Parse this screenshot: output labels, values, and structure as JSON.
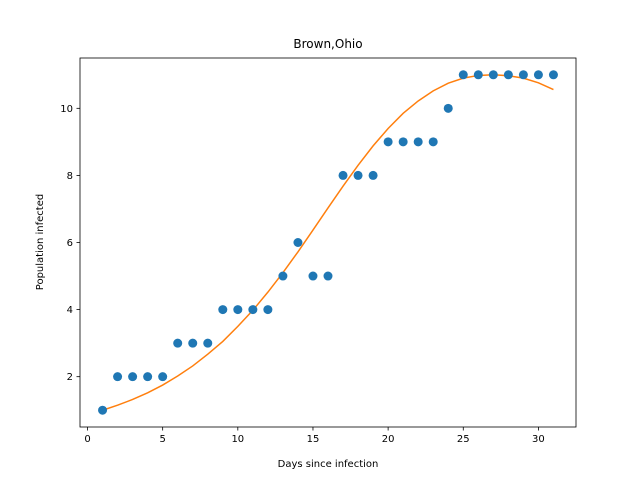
{
  "chart_data": {
    "type": "scatter",
    "title": "Brown,Ohio",
    "xlabel": "Days since infection",
    "ylabel": "Population infected",
    "xlim": [
      -0.5,
      32.5
    ],
    "ylim": [
      0.5,
      11.5
    ],
    "xticks": [
      0,
      5,
      10,
      15,
      20,
      25,
      30
    ],
    "yticks": [
      2,
      4,
      6,
      8,
      10
    ],
    "grid": false,
    "colors": {
      "points": "#1f77b4",
      "fit": "#ff7f0e",
      "axis": "#000000"
    },
    "series": [
      {
        "kind": "scatter",
        "x": [
          1,
          2,
          3,
          4,
          5,
          6,
          7,
          8,
          9,
          10,
          11,
          12,
          13,
          14,
          15,
          16,
          17,
          18,
          19,
          20,
          21,
          22,
          23,
          24,
          25,
          26,
          27,
          28,
          29,
          30,
          31
        ],
        "y": [
          1,
          2,
          2,
          2,
          2,
          3,
          3,
          3,
          4,
          4,
          4,
          4,
          5,
          6,
          5,
          5,
          8,
          8,
          8,
          9,
          9,
          9,
          9,
          10,
          11,
          11,
          11,
          11,
          11,
          11,
          11
        ]
      },
      {
        "kind": "line",
        "x": [
          1,
          2,
          3,
          4,
          5,
          6,
          7,
          8,
          9,
          10,
          11,
          12,
          13,
          14,
          15,
          16,
          17,
          18,
          19,
          20,
          21,
          22,
          23,
          24,
          25,
          26,
          27,
          28,
          29,
          30,
          31
        ],
        "y": [
          1.0,
          1.15,
          1.32,
          1.52,
          1.75,
          2.02,
          2.32,
          2.67,
          3.05,
          3.5,
          3.98,
          4.52,
          5.1,
          5.72,
          6.37,
          7.03,
          7.68,
          8.3,
          8.88,
          9.4,
          9.85,
          10.22,
          10.52,
          10.75,
          10.9,
          10.98,
          11.0,
          10.97,
          10.9,
          10.76,
          10.56
        ]
      }
    ]
  }
}
